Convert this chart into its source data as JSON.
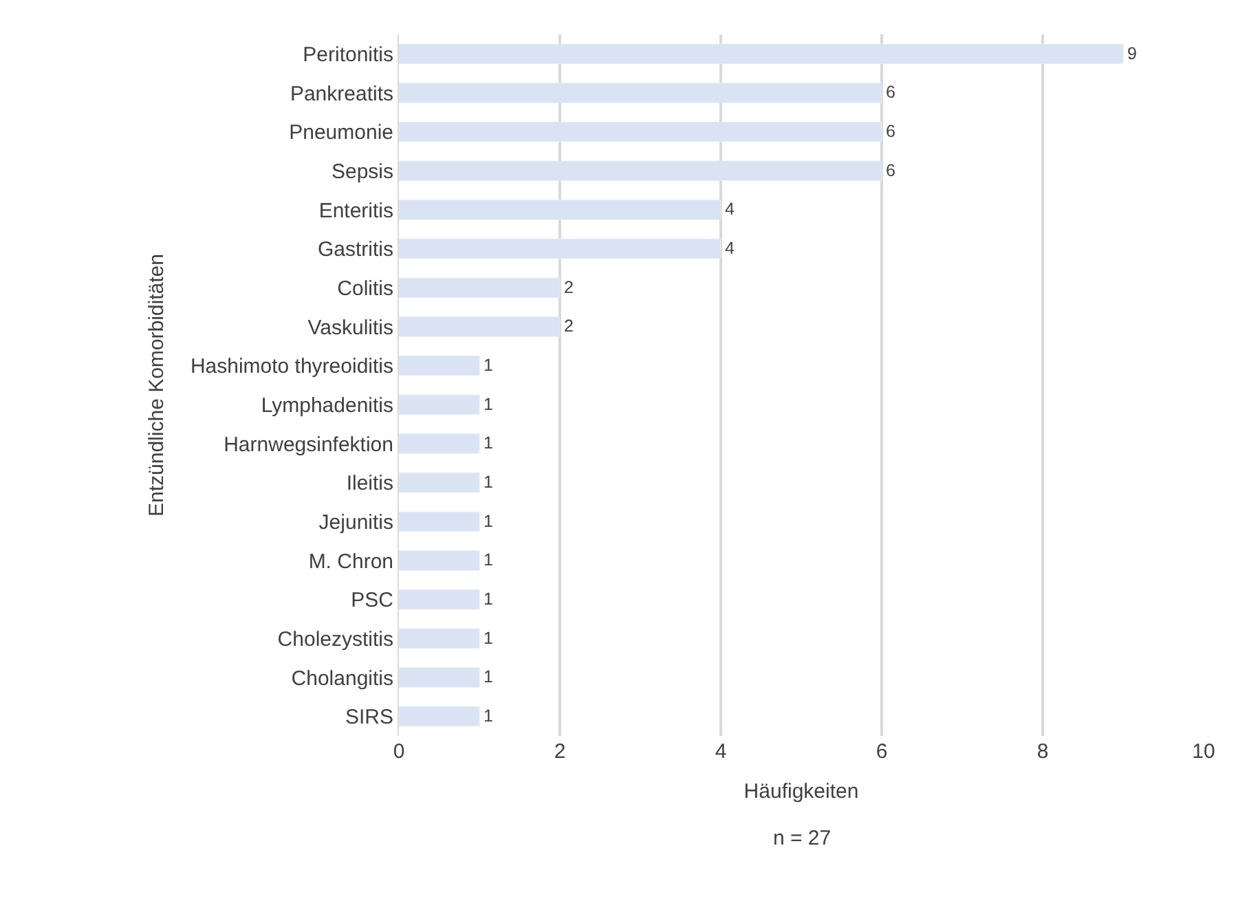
{
  "chart_data": {
    "type": "bar",
    "orientation": "horizontal",
    "xlabel": "Häufigkeiten",
    "ylabel": "Entzündliche Komorbiditäten",
    "categories": [
      "Peritonitis",
      "Pankreatits",
      "Pneumonie",
      "Sepsis",
      "Enteritis",
      "Gastritis",
      "Colitis",
      "Vaskulitis",
      "Hashimoto thyreoiditis",
      "Lymphadenitis",
      "Harnwegsinfektion",
      "Ileitis",
      "Jejunitis",
      "M. Chron",
      "PSC",
      "Cholezystitis",
      "Cholangitis",
      "SIRS"
    ],
    "values": [
      9,
      6,
      6,
      6,
      4,
      4,
      2,
      2,
      1,
      1,
      1,
      1,
      1,
      1,
      1,
      1,
      1,
      1
    ],
    "color": "#dae3f3",
    "xlim": [
      0,
      10
    ],
    "xticks": [
      0,
      2,
      4,
      6,
      8,
      10
    ],
    "grid": "x",
    "data_labels": true,
    "annotations": [
      "n = 27"
    ]
  }
}
